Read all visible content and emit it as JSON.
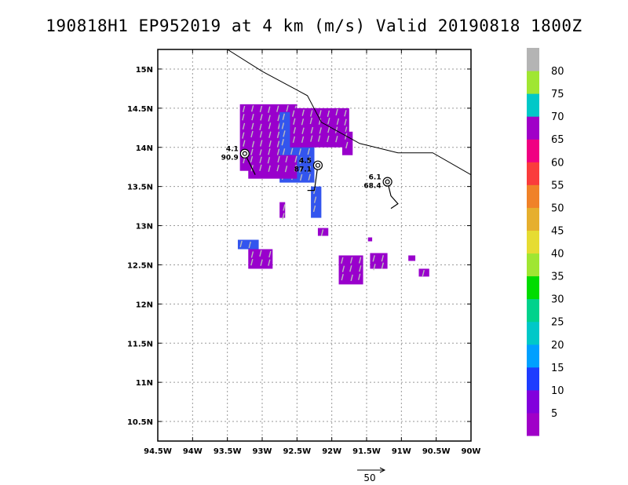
{
  "header": {
    "title": "190818H1  EP952019  at 4 km  (m/s)  Valid 20190818  1800Z"
  },
  "reference_vector": {
    "label": "50"
  },
  "colorbar": {
    "labels": [
      "5",
      "10",
      "15",
      "20",
      "25",
      "30",
      "35",
      "40",
      "45",
      "50",
      "55",
      "60",
      "65",
      "70",
      "75",
      "80"
    ],
    "colors": [
      "#a000c8",
      "#8200dc",
      "#1e3cff",
      "#00a0ff",
      "#00c8c8",
      "#00d28c",
      "#00dc00",
      "#a0e632",
      "#e6dc32",
      "#e6af2d",
      "#f08228",
      "#fa3c3c",
      "#f00082",
      "#a000c8",
      "#00c8c8",
      "#a0e632",
      "#b4b4b4"
    ]
  },
  "chart_data": {
    "type": "map",
    "title": "190818H1  EP952019  at 4 km  (m/s)  Valid 20190818  1800Z",
    "units": "m/s",
    "xlim": [
      -94.5,
      -90.0
    ],
    "ylim": [
      10.25,
      15.25
    ],
    "x_ticks": [
      {
        "value": -94.5,
        "label": "94.5W"
      },
      {
        "value": -94.0,
        "label": "94W"
      },
      {
        "value": -93.5,
        "label": "93.5W"
      },
      {
        "value": -93.0,
        "label": "93W"
      },
      {
        "value": -92.5,
        "label": "92.5W"
      },
      {
        "value": -92.0,
        "label": "92W"
      },
      {
        "value": -91.5,
        "label": "91.5W"
      },
      {
        "value": -91.0,
        "label": "91W"
      },
      {
        "value": -90.5,
        "label": "90.5W"
      },
      {
        "value": -90.0,
        "label": "90W"
      }
    ],
    "y_ticks": [
      {
        "value": 10.5,
        "label": "10.5N"
      },
      {
        "value": 11.0,
        "label": "11N"
      },
      {
        "value": 11.5,
        "label": "11.5N"
      },
      {
        "value": 12.0,
        "label": "12N"
      },
      {
        "value": 12.5,
        "label": "12.5N"
      },
      {
        "value": 13.0,
        "label": "13N"
      },
      {
        "value": 13.5,
        "label": "13.5N"
      },
      {
        "value": 14.0,
        "label": "14N"
      },
      {
        "value": 14.5,
        "label": "14.5N"
      },
      {
        "value": 15.0,
        "label": "15N"
      }
    ],
    "grid": true,
    "coastline": [
      [
        -93.5,
        15.25
      ],
      [
        -93.0,
        14.97
      ],
      [
        -92.35,
        14.66
      ],
      [
        -92.15,
        14.32
      ],
      [
        -91.6,
        14.05
      ],
      [
        -91.05,
        13.93
      ],
      [
        -90.55,
        13.93
      ],
      [
        -90.0,
        13.65
      ]
    ],
    "wind_regions": [
      {
        "lon_min": -93.32,
        "lon_max": -92.5,
        "lat_min": 13.7,
        "lat_max": 14.55,
        "level": 5
      },
      {
        "lon_min": -92.75,
        "lon_max": -92.25,
        "lat_min": 13.55,
        "lat_max": 14.45,
        "level": 10
      },
      {
        "lon_min": -92.6,
        "lon_max": -91.75,
        "lat_min": 14.0,
        "lat_max": 14.5,
        "level": 5
      },
      {
        "lon_min": -91.85,
        "lon_max": -91.7,
        "lat_min": 13.9,
        "lat_max": 14.2,
        "level": 5
      },
      {
        "lon_min": -93.2,
        "lon_max": -92.5,
        "lat_min": 13.6,
        "lat_max": 13.9,
        "level": 5
      },
      {
        "lon_min": -92.3,
        "lon_max": -92.15,
        "lat_min": 13.1,
        "lat_max": 13.5,
        "level": 10
      },
      {
        "lon_min": -92.75,
        "lon_max": -92.67,
        "lat_min": 13.1,
        "lat_max": 13.3,
        "level": 5
      },
      {
        "lon_min": -92.2,
        "lon_max": -92.05,
        "lat_min": 12.87,
        "lat_max": 12.97,
        "level": 5
      },
      {
        "lon_min": -93.35,
        "lon_max": -93.05,
        "lat_min": 12.7,
        "lat_max": 12.82,
        "level": 10
      },
      {
        "lon_min": -93.2,
        "lon_max": -92.85,
        "lat_min": 12.45,
        "lat_max": 12.7,
        "level": 5
      },
      {
        "lon_min": -91.9,
        "lon_max": -91.55,
        "lat_min": 12.25,
        "lat_max": 12.62,
        "level": 5
      },
      {
        "lon_min": -91.45,
        "lon_max": -91.2,
        "lat_min": 12.45,
        "lat_max": 12.65,
        "level": 5
      },
      {
        "lon_min": -90.9,
        "lon_max": -90.8,
        "lat_min": 12.55,
        "lat_max": 12.62,
        "level": 5
      },
      {
        "lon_min": -90.75,
        "lon_max": -90.6,
        "lat_min": 12.35,
        "lat_max": 12.45,
        "level": 5
      },
      {
        "lon_min": -91.48,
        "lon_max": -91.42,
        "lat_min": 12.8,
        "lat_max": 12.85,
        "level": 5
      }
    ],
    "storms": [
      {
        "lon": -93.25,
        "lat": 13.92,
        "label_top": "4.1",
        "label_bottom": "90.9",
        "track": [
          [
            -93.25,
            13.92
          ],
          [
            -93.1,
            13.65
          ]
        ]
      },
      {
        "lon": -92.2,
        "lat": 13.77,
        "label_top": "4.5",
        "label_bottom": "87.1",
        "track": [
          [
            -92.2,
            13.77
          ],
          [
            -92.25,
            13.45
          ],
          [
            -92.35,
            13.45
          ]
        ]
      },
      {
        "lon": -91.2,
        "lat": 13.56,
        "label_top": "6.1",
        "label_bottom": "68.4",
        "track": [
          [
            -91.2,
            13.56
          ],
          [
            -91.15,
            13.38
          ],
          [
            -91.05,
            13.28
          ],
          [
            -91.15,
            13.22
          ]
        ]
      }
    ]
  }
}
